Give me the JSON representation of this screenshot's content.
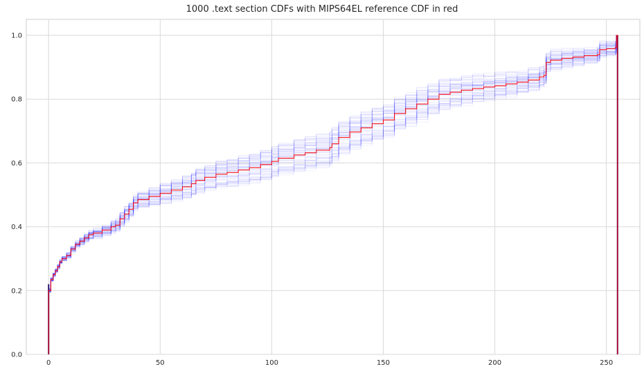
{
  "chart_data": {
    "type": "line",
    "title": "1000 .text section CDFs with MIPS64EL reference CDF in red",
    "xlabel": "",
    "ylabel": "",
    "xlim": [
      -10,
      265
    ],
    "ylim": [
      0,
      1.05
    ],
    "x_ticks": [
      0,
      50,
      100,
      150,
      200,
      250
    ],
    "y_ticks": [
      0.0,
      0.2,
      0.4,
      0.6,
      0.8,
      1.0
    ],
    "grid": true,
    "series": [
      {
        "role": "reference",
        "color": "#ff0000",
        "points": [
          [
            0,
            0.0
          ],
          [
            0,
            0.2
          ],
          [
            1,
            0.235
          ],
          [
            2,
            0.25
          ],
          [
            3,
            0.262
          ],
          [
            4,
            0.275
          ],
          [
            5,
            0.29
          ],
          [
            6,
            0.3
          ],
          [
            8,
            0.31
          ],
          [
            10,
            0.33
          ],
          [
            12,
            0.345
          ],
          [
            14,
            0.355
          ],
          [
            16,
            0.365
          ],
          [
            18,
            0.375
          ],
          [
            20,
            0.38
          ],
          [
            24,
            0.39
          ],
          [
            28,
            0.4
          ],
          [
            30,
            0.405
          ],
          [
            32,
            0.425
          ],
          [
            34,
            0.44
          ],
          [
            36,
            0.455
          ],
          [
            38,
            0.475
          ],
          [
            40,
            0.485
          ],
          [
            45,
            0.495
          ],
          [
            50,
            0.505
          ],
          [
            55,
            0.515
          ],
          [
            60,
            0.525
          ],
          [
            64,
            0.535
          ],
          [
            66,
            0.545
          ],
          [
            70,
            0.555
          ],
          [
            75,
            0.565
          ],
          [
            80,
            0.57
          ],
          [
            85,
            0.578
          ],
          [
            90,
            0.585
          ],
          [
            95,
            0.595
          ],
          [
            100,
            0.605
          ],
          [
            103,
            0.615
          ],
          [
            110,
            0.625
          ],
          [
            115,
            0.632
          ],
          [
            120,
            0.64
          ],
          [
            126,
            0.648
          ],
          [
            127,
            0.66
          ],
          [
            130,
            0.68
          ],
          [
            135,
            0.697
          ],
          [
            140,
            0.71
          ],
          [
            145,
            0.723
          ],
          [
            150,
            0.735
          ],
          [
            155,
            0.755
          ],
          [
            160,
            0.77
          ],
          [
            165,
            0.785
          ],
          [
            170,
            0.8
          ],
          [
            175,
            0.815
          ],
          [
            180,
            0.822
          ],
          [
            185,
            0.828
          ],
          [
            190,
            0.833
          ],
          [
            195,
            0.838
          ],
          [
            200,
            0.842
          ],
          [
            205,
            0.848
          ],
          [
            210,
            0.853
          ],
          [
            215,
            0.86
          ],
          [
            220,
            0.87
          ],
          [
            222,
            0.875
          ],
          [
            223,
            0.915
          ],
          [
            225,
            0.922
          ],
          [
            230,
            0.928
          ],
          [
            235,
            0.932
          ],
          [
            240,
            0.936
          ],
          [
            246,
            0.94
          ],
          [
            247,
            0.955
          ],
          [
            250,
            0.958
          ],
          [
            254,
            0.962
          ],
          [
            254.5,
            0.97
          ],
          [
            254.5,
            1.0
          ],
          [
            255,
            1.0
          ],
          [
            255,
            0.0
          ]
        ]
      }
    ],
    "sample_curves": {
      "count": 1000,
      "color": "#0000ff"
    }
  }
}
